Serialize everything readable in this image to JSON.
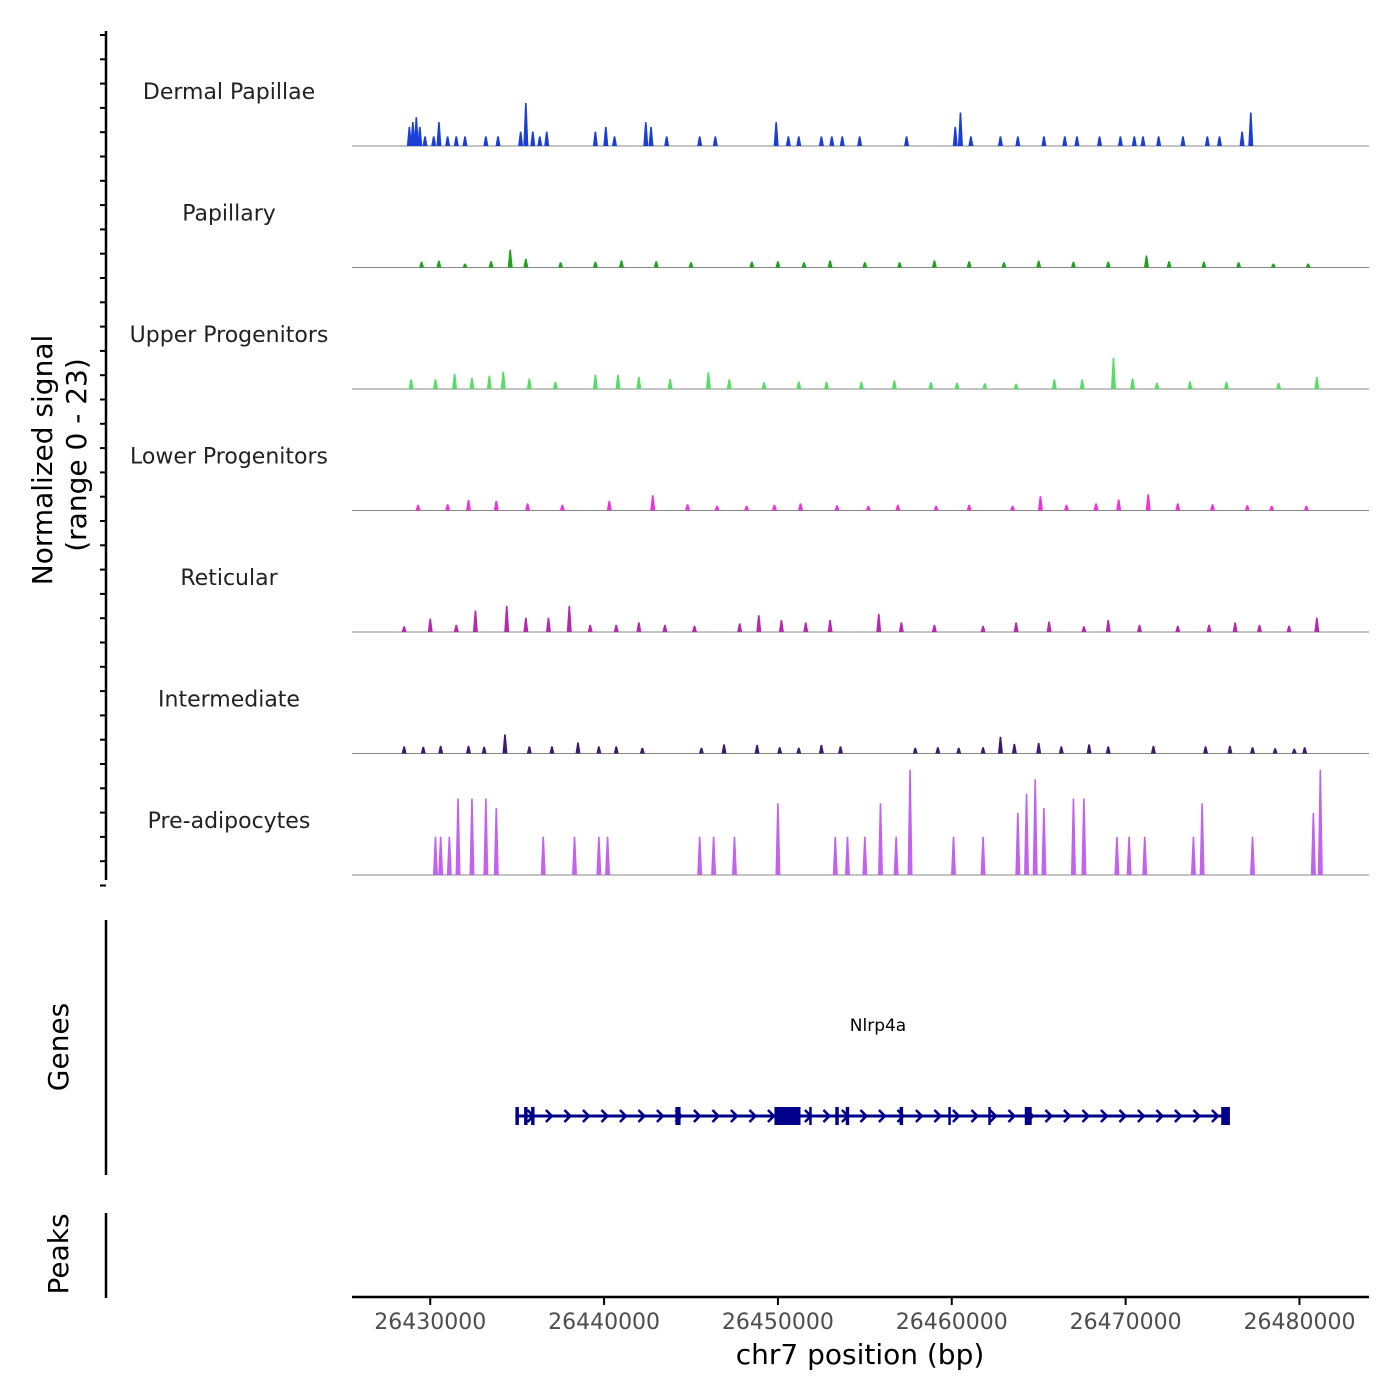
{
  "chart_data": {
    "type": "area",
    "title": "",
    "chromosome": "chr7",
    "xlabel": "chr7 position (bp)",
    "xlim": [
      26425500,
      26484000
    ],
    "x_ticks": [
      26430000,
      26440000,
      26450000,
      26460000,
      26470000,
      26480000
    ],
    "x_tick_labels": [
      "26430000",
      "26440000",
      "26450000",
      "26460000",
      "26470000",
      "26480000"
    ],
    "coverage_panel": {
      "ylabel_line1": "Normalized signal",
      "ylabel_line2": "(range 0 - 23)",
      "ylim": [
        0,
        23
      ],
      "tracks": [
        {
          "name": "Dermal Papillae",
          "color": "#1a3ed6",
          "peaks": [
            [
              26428800,
              4
            ],
            [
              26429000,
              5
            ],
            [
              26429200,
              6
            ],
            [
              26429400,
              4
            ],
            [
              26429700,
              2
            ],
            [
              26430200,
              2
            ],
            [
              26430500,
              5
            ],
            [
              26431000,
              2
            ],
            [
              26431500,
              2
            ],
            [
              26432000,
              2
            ],
            [
              26433200,
              2
            ],
            [
              26433900,
              2
            ],
            [
              26435200,
              3
            ],
            [
              26435500,
              9
            ],
            [
              26435900,
              3
            ],
            [
              26436300,
              2
            ],
            [
              26436700,
              3
            ],
            [
              26439500,
              3
            ],
            [
              26440100,
              4
            ],
            [
              26440600,
              2
            ],
            [
              26442400,
              5
            ],
            [
              26442700,
              4
            ],
            [
              26443600,
              2
            ],
            [
              26445500,
              2
            ],
            [
              26446400,
              2
            ],
            [
              26449900,
              5
            ],
            [
              26450600,
              2
            ],
            [
              26451200,
              2
            ],
            [
              26452500,
              2
            ],
            [
              26453100,
              2
            ],
            [
              26453700,
              2
            ],
            [
              26454700,
              2
            ],
            [
              26457400,
              2
            ],
            [
              26460200,
              4
            ],
            [
              26460500,
              7
            ],
            [
              26461100,
              2
            ],
            [
              26462800,
              2
            ],
            [
              26463800,
              2
            ],
            [
              26465300,
              2
            ],
            [
              26466500,
              2
            ],
            [
              26467200,
              2
            ],
            [
              26468500,
              2
            ],
            [
              26469700,
              2
            ],
            [
              26470500,
              2
            ],
            [
              26471000,
              2
            ],
            [
              26471900,
              2
            ],
            [
              26473300,
              2
            ],
            [
              26474700,
              2
            ],
            [
              26475400,
              2
            ],
            [
              26476700,
              3
            ],
            [
              26477200,
              7
            ]
          ]
        },
        {
          "name": "Papillary",
          "color": "#1fa31f",
          "peaks": [
            [
              26429500,
              1.2
            ],
            [
              26430500,
              1.4
            ],
            [
              26432000,
              0.8
            ],
            [
              26433500,
              1.3
            ],
            [
              26434600,
              3.7
            ],
            [
              26435500,
              1.8
            ],
            [
              26437500,
              1.1
            ],
            [
              26439500,
              1.2
            ],
            [
              26441000,
              1.5
            ],
            [
              26443000,
              1.3
            ],
            [
              26445000,
              1.1
            ],
            [
              26448500,
              1.2
            ],
            [
              26450000,
              1.3
            ],
            [
              26451500,
              1.1
            ],
            [
              26453000,
              1.5
            ],
            [
              26455000,
              1.1
            ],
            [
              26457000,
              1.1
            ],
            [
              26459000,
              1.5
            ],
            [
              26461000,
              1.3
            ],
            [
              26463000,
              1.1
            ],
            [
              26465000,
              1.4
            ],
            [
              26467000,
              1.2
            ],
            [
              26469000,
              1.2
            ],
            [
              26471200,
              2.5
            ],
            [
              26472500,
              1.3
            ],
            [
              26474500,
              1.2
            ],
            [
              26476500,
              1.1
            ],
            [
              26478500,
              0.8
            ],
            [
              26480500,
              0.8
            ]
          ]
        },
        {
          "name": "Upper Progenitors",
          "color": "#55dd66",
          "peaks": [
            [
              26428900,
              2
            ],
            [
              26430300,
              2
            ],
            [
              26431400,
              3.2
            ],
            [
              26432400,
              2.3
            ],
            [
              26433400,
              2.8
            ],
            [
              26434200,
              3.6
            ],
            [
              26435700,
              2.2
            ],
            [
              26437200,
              1.5
            ],
            [
              26439500,
              3
            ],
            [
              26440800,
              3
            ],
            [
              26442000,
              2.5
            ],
            [
              26443800,
              2.1
            ],
            [
              26446000,
              3.5
            ],
            [
              26447200,
              2
            ],
            [
              26449200,
              1.4
            ],
            [
              26451200,
              1.6
            ],
            [
              26452800,
              1.5
            ],
            [
              26454800,
              1.5
            ],
            [
              26456700,
              1.8
            ],
            [
              26458800,
              1.4
            ],
            [
              26460300,
              1.3
            ],
            [
              26461900,
              1.2
            ],
            [
              26463700,
              1.1
            ],
            [
              26465900,
              2
            ],
            [
              26467500,
              2
            ],
            [
              26469300,
              6.5
            ],
            [
              26470400,
              2.2
            ],
            [
              26471800,
              1.3
            ],
            [
              26473700,
              1.6
            ],
            [
              26475800,
              1.5
            ],
            [
              26478800,
              1.3
            ],
            [
              26481000,
              2.5
            ]
          ]
        },
        {
          "name": "Lower Progenitors",
          "color": "#ee33dd",
          "peaks": [
            [
              26429300,
              1.2
            ],
            [
              26431000,
              1.3
            ],
            [
              26432200,
              2.2
            ],
            [
              26433800,
              2
            ],
            [
              26435600,
              1.5
            ],
            [
              26437600,
              1.2
            ],
            [
              26440300,
              2
            ],
            [
              26442800,
              3.2
            ],
            [
              26444800,
              1.3
            ],
            [
              26446500,
              1
            ],
            [
              26448200,
              1
            ],
            [
              26449800,
              1.2
            ],
            [
              26451300,
              1.5
            ],
            [
              26453400,
              1.1
            ],
            [
              26455200,
              1
            ],
            [
              26456900,
              1.2
            ],
            [
              26459100,
              1
            ],
            [
              26461000,
              1.2
            ],
            [
              26463500,
              1
            ],
            [
              26465100,
              3
            ],
            [
              26466600,
              1.2
            ],
            [
              26468300,
              1.5
            ],
            [
              26469600,
              2.3
            ],
            [
              26471300,
              3.4
            ],
            [
              26473000,
              1.5
            ],
            [
              26475000,
              1.3
            ],
            [
              26477000,
              1.1
            ],
            [
              26478400,
              1
            ],
            [
              26480400,
              1
            ]
          ]
        },
        {
          "name": "Reticular",
          "color": "#b52aaa",
          "peaks": [
            [
              26428500,
              1.2
            ],
            [
              26430000,
              2.8
            ],
            [
              26431500,
              1.5
            ],
            [
              26432600,
              4.5
            ],
            [
              26434400,
              5.5
            ],
            [
              26435500,
              3
            ],
            [
              26436800,
              3
            ],
            [
              26438000,
              5.5
            ],
            [
              26439200,
              1.5
            ],
            [
              26440700,
              1.5
            ],
            [
              26442000,
              2
            ],
            [
              26443500,
              1.5
            ],
            [
              26445200,
              1.3
            ],
            [
              26447800,
              1.8
            ],
            [
              26448900,
              3.5
            ],
            [
              26450200,
              2.5
            ],
            [
              26451600,
              2
            ],
            [
              26453000,
              2.5
            ],
            [
              26455800,
              3.8
            ],
            [
              26457100,
              2
            ],
            [
              26459000,
              1.5
            ],
            [
              26461800,
              1.3
            ],
            [
              26463700,
              2
            ],
            [
              26465600,
              2.2
            ],
            [
              26467600,
              1.2
            ],
            [
              26469000,
              2.5
            ],
            [
              26470800,
              1.5
            ],
            [
              26473000,
              1.3
            ],
            [
              26474800,
              1.5
            ],
            [
              26476300,
              2
            ],
            [
              26477700,
              1.5
            ],
            [
              26479400,
              1.3
            ],
            [
              26481000,
              3
            ]
          ]
        },
        {
          "name": "Intermediate",
          "color": "#3d1a6e",
          "peaks": [
            [
              26428500,
              1.5
            ],
            [
              26429600,
              1.4
            ],
            [
              26430600,
              1.6
            ],
            [
              26432200,
              1.6
            ],
            [
              26433100,
              1.4
            ],
            [
              26434300,
              4
            ],
            [
              26435700,
              1.5
            ],
            [
              26437000,
              1.5
            ],
            [
              26438500,
              2.3
            ],
            [
              26439700,
              1.5
            ],
            [
              26440700,
              1.5
            ],
            [
              26442200,
              1.2
            ],
            [
              26445600,
              1.2
            ],
            [
              26446900,
              1.9
            ],
            [
              26448800,
              1.8
            ],
            [
              26450100,
              1.3
            ],
            [
              26451200,
              1.2
            ],
            [
              26452500,
              1.8
            ],
            [
              26453600,
              1.5
            ],
            [
              26457900,
              1.2
            ],
            [
              26459200,
              1.3
            ],
            [
              26460400,
              1.2
            ],
            [
              26461800,
              1.3
            ],
            [
              26462800,
              3.5
            ],
            [
              26463600,
              2
            ],
            [
              26465000,
              2.2
            ],
            [
              26466300,
              1.5
            ],
            [
              26467900,
              1.9
            ],
            [
              26469000,
              1.5
            ],
            [
              26471600,
              1.6
            ],
            [
              26474600,
              1.5
            ],
            [
              26476000,
              1.6
            ],
            [
              26477300,
              1.3
            ],
            [
              26478600,
              1.1
            ],
            [
              26479700,
              1
            ],
            [
              26480300,
              1.3
            ]
          ]
        },
        {
          "name": "Pre-adipocytes",
          "color": "#c262ee",
          "peaks": [
            [
              26430300,
              8
            ],
            [
              26430600,
              8
            ],
            [
              26431100,
              8
            ],
            [
              26431600,
              16
            ],
            [
              26432400,
              16
            ],
            [
              26433200,
              16
            ],
            [
              26433800,
              14
            ],
            [
              26436500,
              8
            ],
            [
              26438300,
              8
            ],
            [
              26439700,
              8
            ],
            [
              26440200,
              8
            ],
            [
              26445500,
              8
            ],
            [
              26446300,
              8
            ],
            [
              26447500,
              8
            ],
            [
              26450000,
              15
            ],
            [
              26453300,
              8
            ],
            [
              26454000,
              8
            ],
            [
              26455000,
              8
            ],
            [
              26455900,
              15
            ],
            [
              26456800,
              8
            ],
            [
              26457600,
              22
            ],
            [
              26460100,
              8
            ],
            [
              26461800,
              8
            ],
            [
              26463800,
              13
            ],
            [
              26464300,
              17
            ],
            [
              26464800,
              20
            ],
            [
              26465300,
              14
            ],
            [
              26467000,
              16
            ],
            [
              26467600,
              16
            ],
            [
              26469500,
              8
            ],
            [
              26470200,
              8
            ],
            [
              26471100,
              8
            ],
            [
              26473900,
              8
            ],
            [
              26474400,
              15
            ],
            [
              26477300,
              8
            ],
            [
              26480800,
              13
            ],
            [
              26481200,
              22
            ]
          ]
        }
      ]
    },
    "genes_panel": {
      "ylabel": "Genes",
      "gene_name": "Nlrp4a",
      "gene_color": "#00008b",
      "strand": "+",
      "start": 26434900,
      "end": 26476000,
      "exons": [
        [
          26434900,
          26435100
        ],
        [
          26435400,
          26435600
        ],
        [
          26435800,
          26436000
        ],
        [
          26444100,
          26444400
        ],
        [
          26449800,
          26451300
        ],
        [
          26451800,
          26451900
        ],
        [
          26453300,
          26453500
        ],
        [
          26453900,
          26454100
        ],
        [
          26457000,
          26457200
        ],
        [
          26459800,
          26459900
        ],
        [
          26462100,
          26462200
        ],
        [
          26464200,
          26464600
        ],
        [
          26475500,
          26476000
        ]
      ]
    },
    "peaks_panel": {
      "ylabel": "Peaks",
      "regions": []
    }
  }
}
